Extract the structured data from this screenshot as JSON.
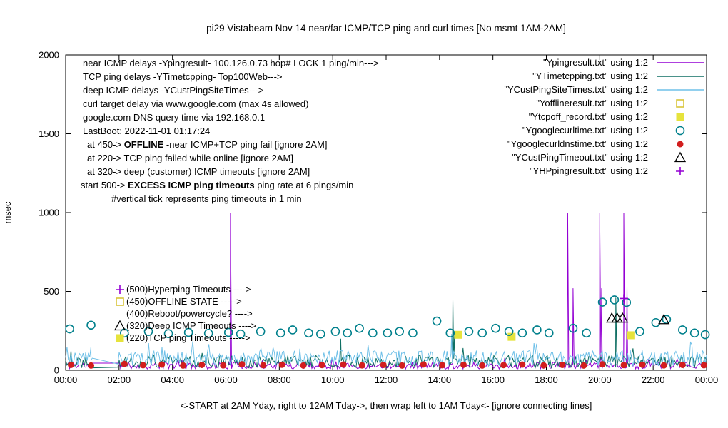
{
  "chart_data": {
    "type": "line",
    "title": "pi29 Vistabeam Nov 14  near/far ICMP/TCP ping and curl times [No msmt 1AM-2AM]",
    "ylabel": "msec",
    "xlabel": "<-START at 2AM Yday, right to 12AM Tday->, then wrap left to 1AM Tday<- [ignore connecting lines]",
    "ylim": [
      0,
      2000
    ],
    "x_hours": [
      0,
      24
    ],
    "grid": false,
    "legend_position": "top-right",
    "yticks": [
      "0",
      "500",
      "1000",
      "1500",
      "2000"
    ],
    "ytick_values": [
      0,
      500,
      1000,
      1500,
      2000
    ],
    "xticks": [
      "00:00",
      "02:00",
      "04:00",
      "06:00",
      "08:00",
      "10:00",
      "12:00",
      "14:00",
      "16:00",
      "18:00",
      "20:00",
      "22:00",
      "00:00"
    ],
    "series": [
      {
        "name": "\"Ypingresult.txt\" using 1:2",
        "type": "line",
        "color": "#9400d3",
        "noise": {
          "base": 30,
          "amp": 22,
          "n": 480,
          "seed": 11
        },
        "spikes": [
          [
            6.17,
            1000
          ],
          [
            18.8,
            1000
          ],
          [
            19.0,
            520
          ],
          [
            20.0,
            1000
          ],
          [
            20.07,
            520
          ],
          [
            20.9,
            1000
          ],
          [
            21.02,
            530
          ]
        ]
      },
      {
        "name": "\"YTimetcpping.txt\" using 1:2",
        "type": "line",
        "color": "#0f6f63",
        "noise": {
          "base": 55,
          "amp": 40,
          "n": 480,
          "seed": 22
        },
        "spikes": [
          [
            10.3,
            200
          ],
          [
            14.5,
            450
          ],
          [
            14.56,
            230
          ],
          [
            20.6,
            460
          ]
        ]
      },
      {
        "name": "\"YCustPingSiteTimes.txt\" using 1:2",
        "type": "line",
        "color": "#6fc0e8",
        "noise": {
          "base": 75,
          "amp": 50,
          "n": 480,
          "seed": 33
        },
        "spikes": [
          [
            0.95,
            150
          ],
          [
            14.45,
            230
          ]
        ]
      },
      {
        "name": "\"Yofflineresult.txt\" using 1:2",
        "type": "scatter",
        "marker": "square-open",
        "color": "#d8c53a",
        "points": []
      },
      {
        "name": "\"Ytcpoff_record.txt\" using 1:2",
        "type": "scatter",
        "marker": "square-filled",
        "color": "#e6e33c",
        "points": [
          [
            14.7,
            225
          ],
          [
            16.7,
            212
          ],
          [
            21.15,
            222
          ]
        ]
      },
      {
        "name": "\"Ygooglecurltime.txt\" using 1:2",
        "type": "scatter",
        "marker": "circle-open",
        "color": "#00808c",
        "points": [
          [
            0.15,
            262
          ],
          [
            0.95,
            286
          ],
          [
            2.2,
            236
          ],
          [
            3.1,
            246
          ],
          [
            3.85,
            232
          ],
          [
            4.6,
            240
          ],
          [
            5.35,
            234
          ],
          [
            6.1,
            240
          ],
          [
            6.55,
            230
          ],
          [
            7.3,
            246
          ],
          [
            8.05,
            236
          ],
          [
            8.5,
            256
          ],
          [
            9.1,
            236
          ],
          [
            9.55,
            230
          ],
          [
            10.1,
            246
          ],
          [
            10.55,
            236
          ],
          [
            11.0,
            266
          ],
          [
            11.5,
            236
          ],
          [
            12.05,
            236
          ],
          [
            12.5,
            246
          ],
          [
            13.0,
            236
          ],
          [
            13.9,
            312
          ],
          [
            14.4,
            236
          ],
          [
            15.1,
            246
          ],
          [
            15.6,
            236
          ],
          [
            16.1,
            266
          ],
          [
            16.6,
            246
          ],
          [
            17.1,
            236
          ],
          [
            17.65,
            256
          ],
          [
            18.1,
            236
          ],
          [
            19.0,
            266
          ],
          [
            19.5,
            236
          ],
          [
            20.1,
            432
          ],
          [
            20.55,
            446
          ],
          [
            21.0,
            430
          ],
          [
            21.5,
            246
          ],
          [
            22.1,
            302
          ],
          [
            22.5,
            322
          ],
          [
            23.1,
            256
          ],
          [
            23.55,
            236
          ],
          [
            23.95,
            226
          ]
        ]
      },
      {
        "name": "\"Ygooglecurldnstime.txt\" using 1:2",
        "type": "scatter",
        "marker": "circle-filled",
        "color": "#d21e1e",
        "points": [
          [
            0.2,
            34
          ],
          [
            0.95,
            30
          ],
          [
            2.2,
            40
          ],
          [
            2.9,
            32
          ],
          [
            3.6,
            36
          ],
          [
            4.4,
            30
          ],
          [
            5.1,
            34
          ],
          [
            5.9,
            31
          ],
          [
            6.6,
            38
          ],
          [
            7.4,
            32
          ],
          [
            8.1,
            35
          ],
          [
            8.9,
            30
          ],
          [
            9.6,
            33
          ],
          [
            10.4,
            36
          ],
          [
            11.1,
            31
          ],
          [
            11.9,
            34
          ],
          [
            12.6,
            30
          ],
          [
            13.4,
            37
          ],
          [
            14.1,
            32
          ],
          [
            14.9,
            35
          ],
          [
            15.6,
            30
          ],
          [
            16.4,
            33
          ],
          [
            17.1,
            36
          ],
          [
            17.9,
            31
          ],
          [
            18.6,
            34
          ],
          [
            19.4,
            30
          ],
          [
            20.1,
            38
          ],
          [
            20.9,
            33
          ],
          [
            21.6,
            35
          ],
          [
            22.4,
            31
          ],
          [
            23.1,
            34
          ],
          [
            23.9,
            32
          ]
        ]
      },
      {
        "name": "\"YCustPingTimeout.txt\" using 1:2",
        "type": "scatter",
        "marker": "triangle-open",
        "color": "#000000",
        "points": [
          [
            20.45,
            330
          ],
          [
            20.65,
            330
          ],
          [
            20.85,
            330
          ],
          [
            22.4,
            320
          ]
        ]
      },
      {
        "name": "\"YHPpingresult.txt\" using 1:2",
        "type": "scatter",
        "marker": "plus",
        "color": "#9400d3",
        "points": [
          [
            20.9,
            455
          ]
        ]
      }
    ]
  },
  "annotations": {
    "info_lines": [
      {
        "indent": 0,
        "parts": [
          {
            "t": "near ICMP delays -Ypingresult- 100.126.0.73 hop# LOCK 1 ping/min--->"
          }
        ]
      },
      {
        "indent": 0,
        "parts": [
          {
            "t": "TCP ping delays -YTimetcpping- Top100Web--->"
          }
        ]
      },
      {
        "indent": 0,
        "parts": [
          {
            "t": "deep ICMP delays -YCustPingSiteTimes--->"
          }
        ]
      },
      {
        "indent": 0,
        "parts": [
          {
            "t": "curl target delay via www.google.com (max 4s allowed)"
          }
        ]
      },
      {
        "indent": 0,
        "parts": [
          {
            "t": "google.com DNS query time via 192.168.0.1"
          }
        ]
      },
      {
        "indent": 0,
        "parts": [
          {
            "t": "LastBoot: 2022-11-01 01:17:24"
          }
        ]
      },
      {
        "indent": 6,
        "parts": [
          {
            "t": "at 450->  "
          },
          {
            "t": "OFFLINE",
            "b": true
          },
          {
            "t": "  -near ICMP+TCP ping fail [ignore 2AM]"
          }
        ]
      },
      {
        "indent": 6,
        "parts": [
          {
            "t": "at 220-> TCP ping failed while online [ignore 2AM]"
          }
        ]
      },
      {
        "indent": 6,
        "parts": [
          {
            "t": "at 320-> deep (customer) ICMP timeouts [ignore 2AM]"
          }
        ]
      },
      {
        "indent": -3,
        "parts": [
          {
            "t": "start 500->  "
          },
          {
            "t": "EXCESS ICMP ping timeouts",
            "b": true
          },
          {
            "t": "  ping rate at 6 pings/min"
          }
        ]
      },
      {
        "indent": 40,
        "parts": [
          {
            "t": "#vertical tick represents ping timeouts in 1 min"
          }
        ]
      }
    ],
    "level_labels": [
      {
        "marker": "plus",
        "color": "#9400d3",
        "text": "(500)Hyperping Timeouts ---->"
      },
      {
        "marker": "square-open",
        "color": "#d8c53a",
        "text": "(450)OFFLINE STATE ----->"
      },
      {
        "marker": "none",
        "color": "",
        "text": "(400)Reboot/powercycle? ---->"
      },
      {
        "marker": "triangle-open",
        "color": "#000000",
        "text": "(320)Deep ICMP Timeouts ---->"
      },
      {
        "marker": "square-filled",
        "color": "#e6e33c",
        "text": "(220)TCP ping Timeouts ----->"
      }
    ]
  }
}
